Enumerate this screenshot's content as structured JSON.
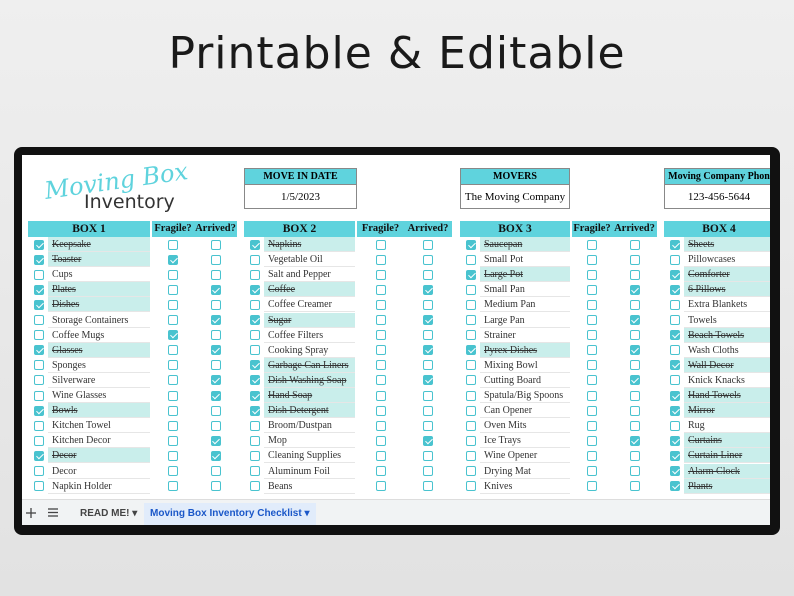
{
  "header": {
    "title": "Printable & Editable"
  },
  "sheet": {
    "logo_script": "Moving Box",
    "logo_text": "Inventory",
    "info": [
      {
        "label": "MOVE IN DATE",
        "value": "1/5/2023"
      },
      {
        "label": "MOVERS",
        "value": "The Moving Company"
      },
      {
        "label": "Moving Company Phon",
        "value": "123-456-5644"
      }
    ],
    "boxes": [
      {
        "title": "BOX 1",
        "fragile_label": "Fragile?",
        "arrived_label": "Arrived?",
        "rows": [
          {
            "item": "Keepsake",
            "done": true,
            "fragile": false,
            "arrived": false
          },
          {
            "item": "Toaster",
            "done": true,
            "fragile": true,
            "arrived": false
          },
          {
            "item": "Cups",
            "done": false,
            "fragile": false,
            "arrived": false
          },
          {
            "item": "Plates",
            "done": true,
            "fragile": false,
            "arrived": true
          },
          {
            "item": "Dishes",
            "done": true,
            "fragile": false,
            "arrived": false
          },
          {
            "item": "Storage Containers",
            "done": false,
            "fragile": false,
            "arrived": true
          },
          {
            "item": "Coffee Mugs",
            "done": false,
            "fragile": true,
            "arrived": false
          },
          {
            "item": "Glasses",
            "done": true,
            "fragile": false,
            "arrived": true
          },
          {
            "item": "Sponges",
            "done": false,
            "fragile": false,
            "arrived": false
          },
          {
            "item": "Silverware",
            "done": false,
            "fragile": false,
            "arrived": true
          },
          {
            "item": "Wine Glasses",
            "done": false,
            "fragile": false,
            "arrived": true
          },
          {
            "item": "Bowls",
            "done": true,
            "fragile": false,
            "arrived": false
          },
          {
            "item": "Kitchen Towel",
            "done": false,
            "fragile": false,
            "arrived": false
          },
          {
            "item": "Kitchen Decor",
            "done": false,
            "fragile": false,
            "arrived": true
          },
          {
            "item": "Decor",
            "done": true,
            "fragile": false,
            "arrived": true
          },
          {
            "item": "Decor",
            "done": false,
            "fragile": false,
            "arrived": false
          },
          {
            "item": "Napkin Holder",
            "done": false,
            "fragile": false,
            "arrived": false
          }
        ]
      },
      {
        "title": "BOX 2",
        "fragile_label": "Fragile?",
        "arrived_label": "Arrived?",
        "rows": [
          {
            "item": "Napkins",
            "done": true,
            "fragile": false,
            "arrived": false
          },
          {
            "item": "Vegetable Oil",
            "done": false,
            "fragile": false,
            "arrived": false
          },
          {
            "item": "Salt and Pepper",
            "done": false,
            "fragile": false,
            "arrived": false
          },
          {
            "item": "Coffee",
            "done": true,
            "fragile": false,
            "arrived": true
          },
          {
            "item": "Coffee Creamer",
            "done": false,
            "fragile": false,
            "arrived": false
          },
          {
            "item": "Sugar",
            "done": true,
            "fragile": false,
            "arrived": true
          },
          {
            "item": "Coffee Filters",
            "done": false,
            "fragile": false,
            "arrived": false
          },
          {
            "item": "Cooking Spray",
            "done": false,
            "fragile": false,
            "arrived": true
          },
          {
            "item": "Garbage Can Liners",
            "done": true,
            "fragile": false,
            "arrived": false
          },
          {
            "item": "Dish Washing Soap",
            "done": true,
            "fragile": false,
            "arrived": true
          },
          {
            "item": "Hand Soap",
            "done": true,
            "fragile": false,
            "arrived": false
          },
          {
            "item": "Dish Detergent",
            "done": true,
            "fragile": false,
            "arrived": false
          },
          {
            "item": "Broom/Dustpan",
            "done": false,
            "fragile": false,
            "arrived": false
          },
          {
            "item": "Mop",
            "done": false,
            "fragile": false,
            "arrived": true
          },
          {
            "item": "Cleaning Supplies",
            "done": false,
            "fragile": false,
            "arrived": false
          },
          {
            "item": "Aluminum Foil",
            "done": false,
            "fragile": false,
            "arrived": false
          },
          {
            "item": "Beans",
            "done": false,
            "fragile": false,
            "arrived": false
          }
        ]
      },
      {
        "title": "BOX 3",
        "fragile_label": "Fragile?",
        "arrived_label": "Arrived?",
        "rows": [
          {
            "item": "Saucepan",
            "done": true,
            "fragile": false,
            "arrived": false
          },
          {
            "item": "Small Pot",
            "done": false,
            "fragile": false,
            "arrived": false
          },
          {
            "item": "Large Pot",
            "done": true,
            "fragile": false,
            "arrived": false
          },
          {
            "item": "Small Pan",
            "done": false,
            "fragile": false,
            "arrived": true
          },
          {
            "item": "Medium Pan",
            "done": false,
            "fragile": false,
            "arrived": false
          },
          {
            "item": "Large Pan",
            "done": false,
            "fragile": false,
            "arrived": true
          },
          {
            "item": "Strainer",
            "done": false,
            "fragile": false,
            "arrived": false
          },
          {
            "item": "Pyrex Dishes",
            "done": true,
            "fragile": false,
            "arrived": true
          },
          {
            "item": "Mixing Bowl",
            "done": false,
            "fragile": false,
            "arrived": false
          },
          {
            "item": "Cutting Board",
            "done": false,
            "fragile": false,
            "arrived": true
          },
          {
            "item": "Spatula/Big Spoons",
            "done": false,
            "fragile": false,
            "arrived": false
          },
          {
            "item": "Can Opener",
            "done": false,
            "fragile": false,
            "arrived": false
          },
          {
            "item": "Oven Mits",
            "done": false,
            "fragile": false,
            "arrived": false
          },
          {
            "item": "Ice Trays",
            "done": false,
            "fragile": false,
            "arrived": true
          },
          {
            "item": "Wine Opener",
            "done": false,
            "fragile": false,
            "arrived": false
          },
          {
            "item": "Drying Mat",
            "done": false,
            "fragile": false,
            "arrived": false
          },
          {
            "item": "Knives",
            "done": false,
            "fragile": false,
            "arrived": false
          }
        ]
      },
      {
        "title": "BOX 4",
        "rows": [
          {
            "item": "Sheets",
            "done": true
          },
          {
            "item": "Pillowcases",
            "done": false
          },
          {
            "item": "Comforter",
            "done": true
          },
          {
            "item": "6 Pillows",
            "done": true
          },
          {
            "item": "Extra Blankets",
            "done": false
          },
          {
            "item": "Towels",
            "done": false
          },
          {
            "item": "Beach Towels",
            "done": true
          },
          {
            "item": "Wash Cloths",
            "done": false
          },
          {
            "item": "Wall Decor",
            "done": true
          },
          {
            "item": "Knick Knacks",
            "done": false
          },
          {
            "item": "Hand Towels",
            "done": true
          },
          {
            "item": "Mirror",
            "done": true
          },
          {
            "item": "Rug",
            "done": false
          },
          {
            "item": "Curtains",
            "done": true
          },
          {
            "item": "Curtain Liner",
            "done": true
          },
          {
            "item": "Alarm Clock",
            "done": true
          },
          {
            "item": "Plants",
            "done": true
          }
        ]
      }
    ]
  },
  "tabs": [
    "READ ME!",
    "Moving Box Inventory Checklist"
  ]
}
